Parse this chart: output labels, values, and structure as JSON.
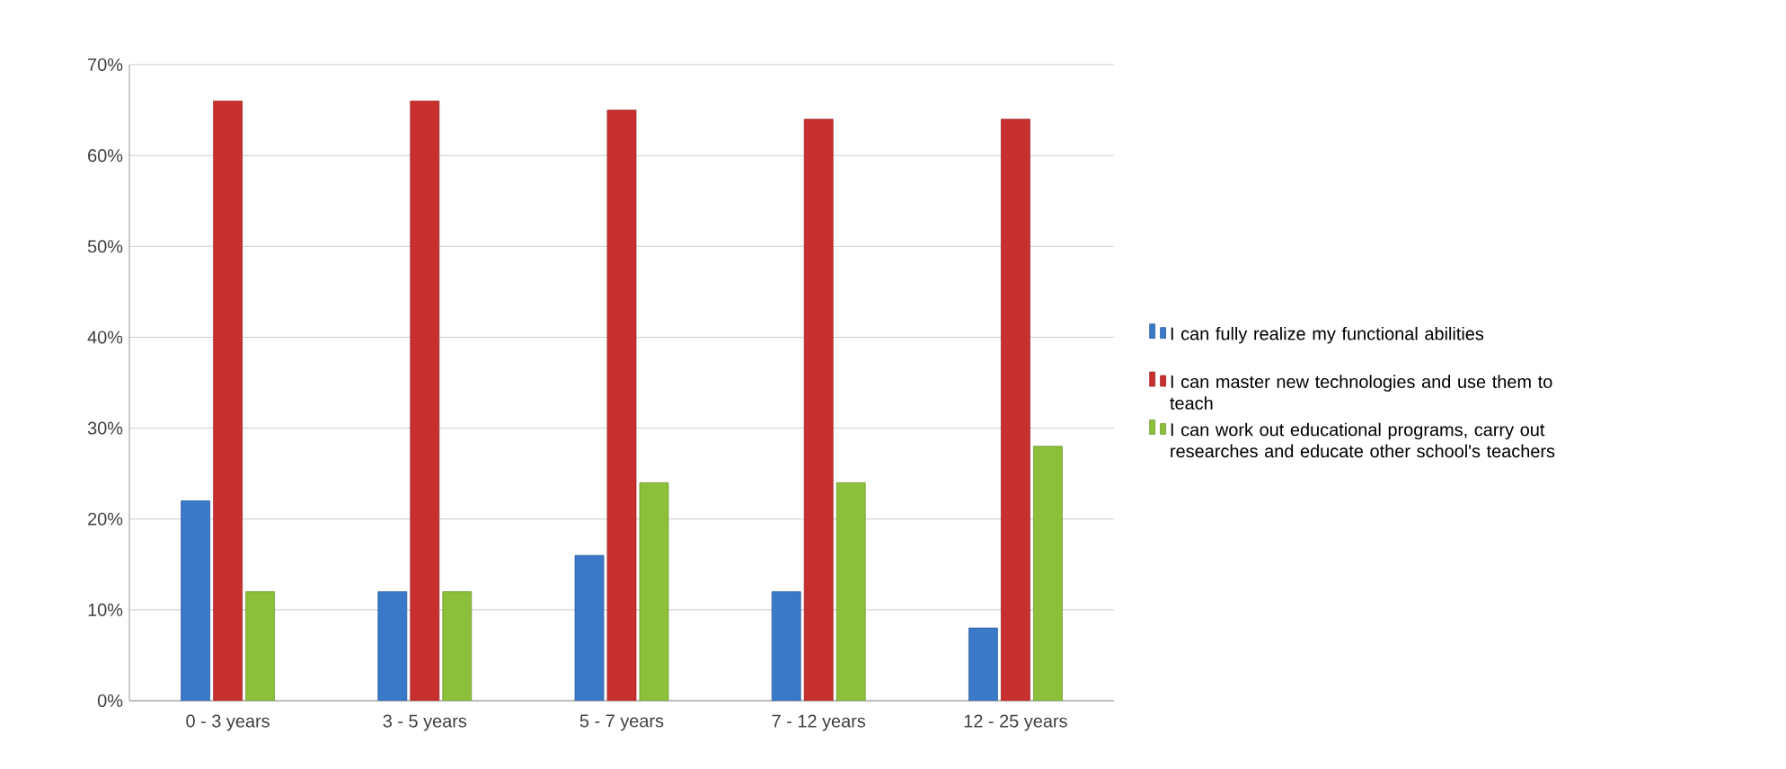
{
  "chart_data": {
    "type": "bar",
    "categories": [
      "0 - 3 years",
      "3 - 5 years",
      "5 - 7 years",
      "7 - 12 years",
      "12 - 25 years"
    ],
    "series": [
      {
        "name": "I can fully realize my functional abilities",
        "color": "#3a78c8",
        "values": [
          22,
          12,
          16,
          12,
          8
        ]
      },
      {
        "name": "I can master new technologies and use them to teach",
        "color": "#c8302f",
        "values": [
          66,
          66,
          65,
          64,
          64
        ]
      },
      {
        "name": "I can work out educational programs, carry out researches and educate other school's teachers",
        "color": "#8cbf3a",
        "values": [
          12,
          12,
          24,
          24,
          28
        ]
      }
    ],
    "ylim": [
      0,
      70
    ],
    "yticks": [
      {
        "value": 0,
        "label": "0%"
      },
      {
        "value": 10,
        "label": "10%"
      },
      {
        "value": 20,
        "label": "20%"
      },
      {
        "value": 30,
        "label": "30%"
      },
      {
        "value": 40,
        "label": "40%"
      },
      {
        "value": 50,
        "label": "50%"
      },
      {
        "value": 60,
        "label": "60%"
      },
      {
        "value": 70,
        "label": "70%"
      }
    ],
    "grid": "y",
    "legend": "right"
  }
}
